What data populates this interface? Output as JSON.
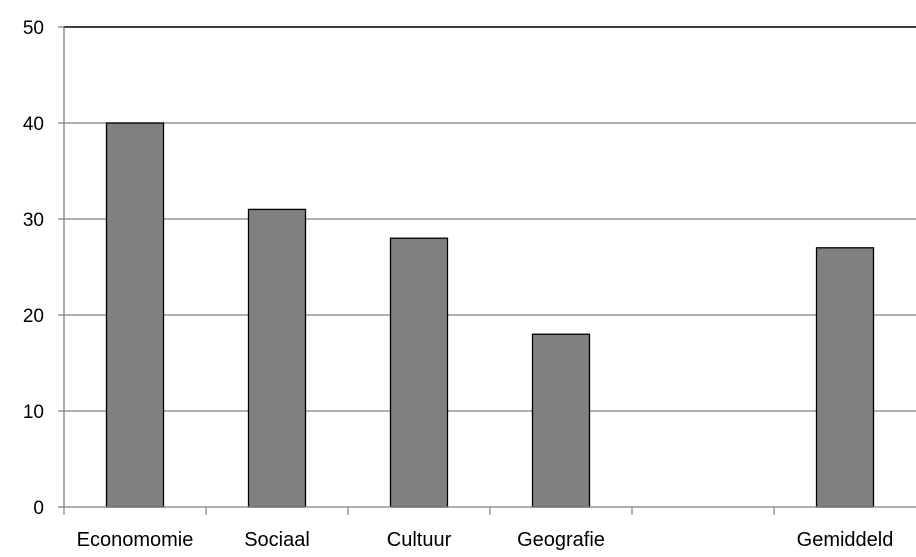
{
  "chart_data": {
    "type": "bar",
    "categories": [
      "Economomie",
      "Sociaal",
      "Cultuur",
      "Geografie",
      "",
      "Gemiddeld"
    ],
    "values": [
      40,
      31,
      28,
      18,
      null,
      27
    ],
    "title": "",
    "xlabel": "",
    "ylabel": "",
    "ylim": [
      0,
      50
    ],
    "yticks": [
      0,
      10,
      20,
      30,
      40,
      50
    ],
    "grid": true,
    "legend": "none",
    "colors": {
      "bar_fill": "#808080",
      "bar_stroke": "#000000",
      "grid": "#808080",
      "axis": "#808080",
      "top_line": "#000000"
    }
  }
}
